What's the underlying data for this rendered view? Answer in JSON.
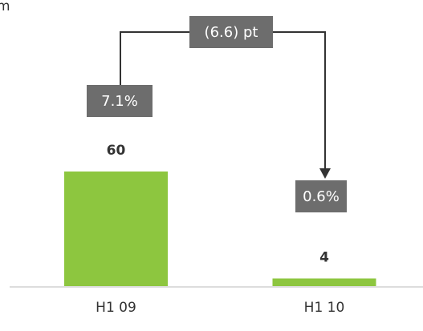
{
  "chart_data": {
    "type": "bar",
    "unit_label": "m",
    "categories": [
      "H1 09",
      "H1 10"
    ],
    "values": [
      60,
      4
    ],
    "color": "#8dc63f",
    "annotations": {
      "margins": [
        "7.1%",
        "0.6%"
      ],
      "change": "(6.6) pt"
    }
  }
}
